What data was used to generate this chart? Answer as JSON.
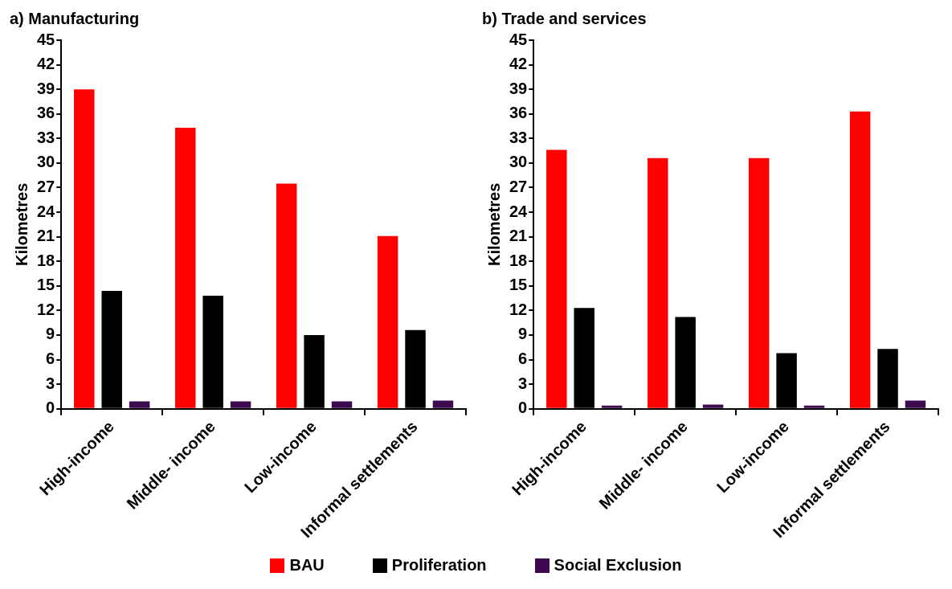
{
  "chart_data": [
    {
      "type": "bar",
      "title": "a) Manufacturing",
      "ylabel": "Kilometres",
      "categories": [
        "High-income",
        "Middle- income",
        "Low-income",
        "Informal settlements"
      ],
      "series": [
        {
          "name": "BAU",
          "color": "#ff0000",
          "values": [
            39,
            34.3,
            27.5,
            21.1
          ]
        },
        {
          "name": "Proliferation",
          "color": "#000000",
          "values": [
            14.4,
            13.8,
            9.0,
            9.6
          ]
        },
        {
          "name": "Social Exclusion",
          "color": "#3d0a4f",
          "values": [
            0.9,
            0.9,
            0.9,
            1.0
          ]
        }
      ],
      "ylim": [
        0,
        45
      ],
      "yticks": [
        0,
        3,
        6,
        9,
        12,
        15,
        18,
        21,
        24,
        27,
        30,
        33,
        36,
        39,
        42,
        45
      ],
      "legend": "bottom"
    },
    {
      "type": "bar",
      "title": "b) Trade and services",
      "ylabel": "Kilometres",
      "categories": [
        "High-income",
        "Middle- income",
        "Low-income",
        "Informal settlements"
      ],
      "series": [
        {
          "name": "BAU",
          "color": "#ff0000",
          "values": [
            31.6,
            30.6,
            30.6,
            36.3
          ]
        },
        {
          "name": "Proliferation",
          "color": "#000000",
          "values": [
            12.3,
            11.2,
            6.8,
            7.3
          ]
        },
        {
          "name": "Social Exclusion",
          "color": "#3d0a4f",
          "values": [
            0.4,
            0.5,
            0.4,
            1.0
          ]
        }
      ],
      "ylim": [
        0,
        45
      ],
      "yticks": [
        0,
        3,
        6,
        9,
        12,
        15,
        18,
        21,
        24,
        27,
        30,
        33,
        36,
        39,
        42,
        45
      ],
      "legend": "bottom"
    }
  ]
}
